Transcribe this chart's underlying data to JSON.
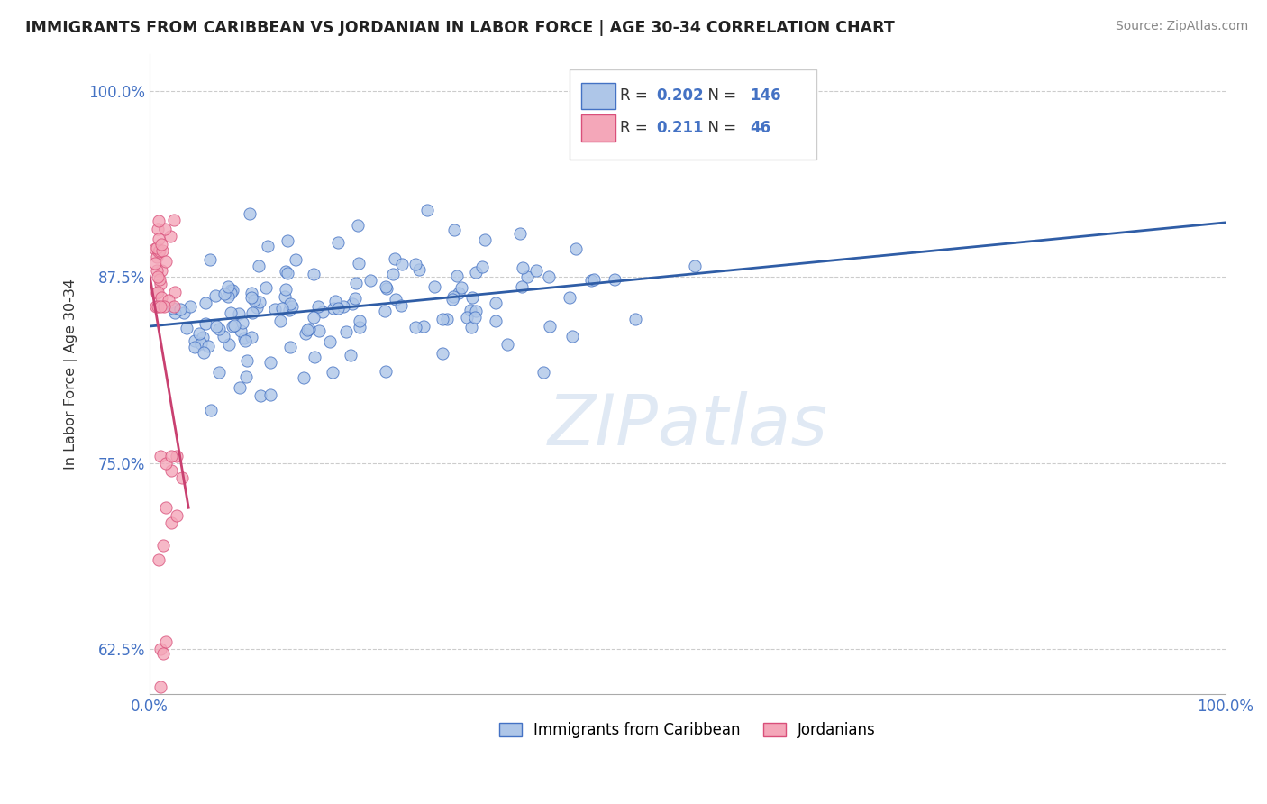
{
  "title": "IMMIGRANTS FROM CARIBBEAN VS JORDANIAN IN LABOR FORCE | AGE 30-34 CORRELATION CHART",
  "source": "Source: ZipAtlas.com",
  "ylabel": "In Labor Force | Age 30-34",
  "xlim": [
    0.0,
    1.0
  ],
  "ylim": [
    0.595,
    1.025
  ],
  "yticks": [
    0.625,
    0.75,
    0.875,
    1.0
  ],
  "ytick_labels": [
    "62.5%",
    "75.0%",
    "87.5%",
    "100.0%"
  ],
  "xticks": [
    0.0,
    1.0
  ],
  "xtick_labels": [
    "0.0%",
    "100.0%"
  ],
  "watermark": "ZIPatlas",
  "legend_blue_R": "0.202",
  "legend_blue_N": "146",
  "legend_pink_R": "0.211",
  "legend_pink_N": "46",
  "blue_color": "#aec6e8",
  "blue_edge_color": "#4472c4",
  "pink_color": "#f4a7b9",
  "pink_edge_color": "#d94f7a",
  "blue_line_color": "#2f5da6",
  "pink_line_color": "#c94070"
}
